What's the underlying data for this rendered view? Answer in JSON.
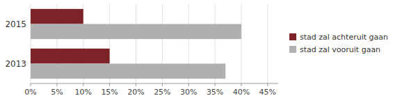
{
  "chart_data": {
    "type": "bar",
    "orientation": "horizontal",
    "categories": [
      "2015",
      "2013"
    ],
    "series": [
      {
        "name": "stad zal achteruit gaan",
        "color": "#7b2328",
        "values": [
          10,
          15
        ]
      },
      {
        "name": "stad zal vooruit gaan",
        "color": "#b0b0b0",
        "values": [
          40,
          37
        ]
      }
    ],
    "xlim": [
      0,
      47
    ],
    "xticks": [
      {
        "value": 0,
        "label": "0%"
      },
      {
        "value": 5,
        "label": "5%"
      },
      {
        "value": 10,
        "label": "10%"
      },
      {
        "value": 15,
        "label": "15%"
      },
      {
        "value": 20,
        "label": "20%"
      },
      {
        "value": 25,
        "label": "25%"
      },
      {
        "value": 30,
        "label": "30%"
      },
      {
        "value": 35,
        "label": "35%"
      },
      {
        "value": 40,
        "label": "40%"
      },
      {
        "value": 45,
        "label": "45%"
      }
    ],
    "grid": true,
    "legend": "right"
  }
}
